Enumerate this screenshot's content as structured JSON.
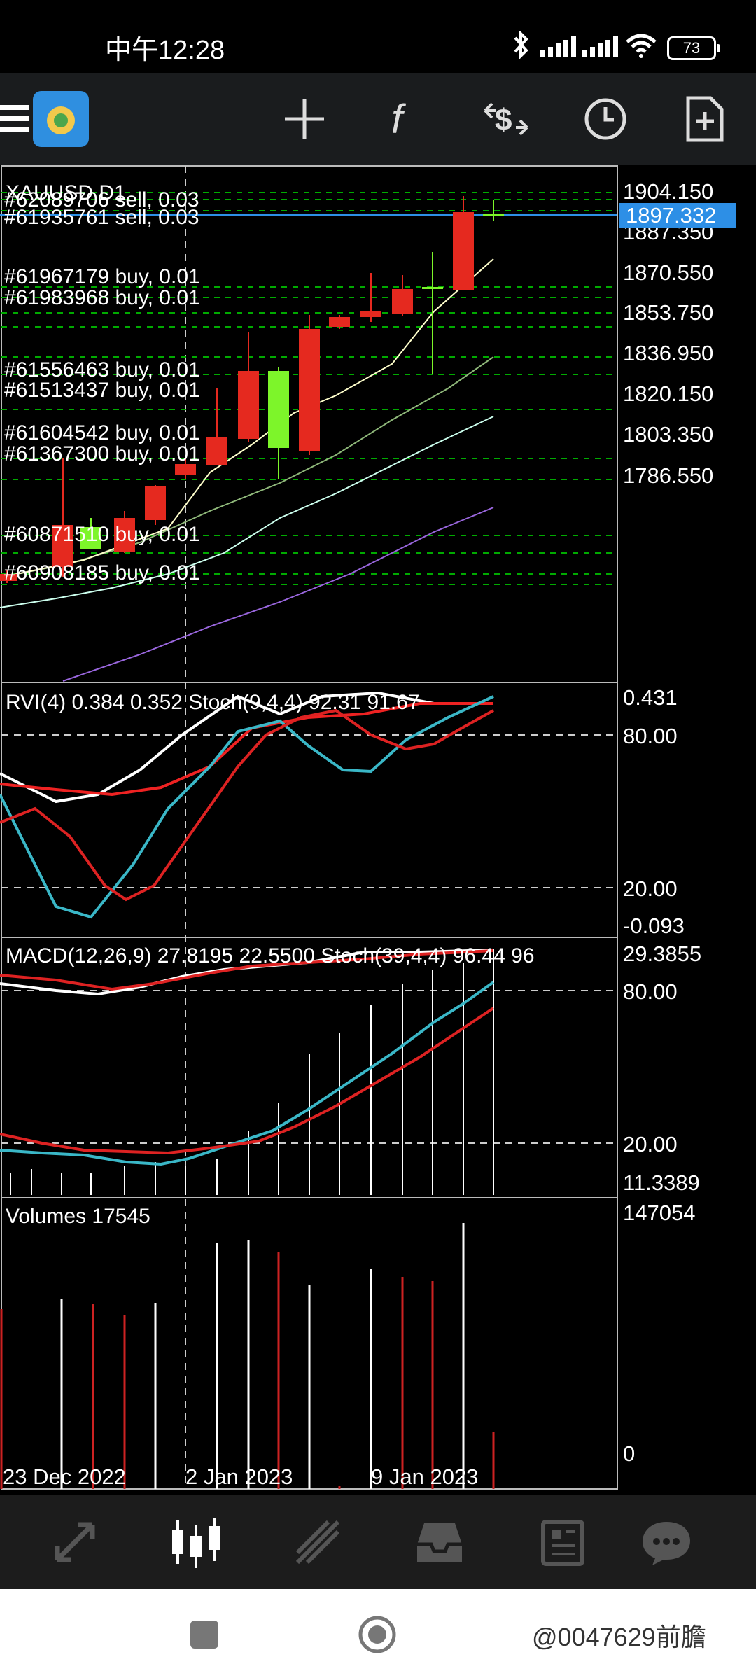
{
  "status_bar": {
    "time": "中午12:28",
    "battery": "73",
    "icons": [
      "bluetooth-icon",
      "signal-icon",
      "signal-icon",
      "wifi-icon",
      "battery-icon"
    ]
  },
  "toolbar": {
    "icons": [
      "menu-icon",
      "metatrader-logo-icon",
      "crosshair-icon",
      "indicator-f-icon",
      "dollar-arrows-icon",
      "clock-icon",
      "add-document-icon"
    ]
  },
  "main_chart": {
    "symbol_label": "XAUUSD,D1",
    "price_ticks": [
      "1904.150",
      "1887.350",
      "1870.550",
      "1853.750",
      "1836.950",
      "1820.150",
      "1803.350",
      "1786.550"
    ],
    "current_price": "1897.332",
    "order_labels": [
      "#62089706 sell, 0.03",
      "#61935761 sell, 0.03",
      "#61967179 buy, 0.01",
      "#61983968 buy, 0.01",
      "#61556463 buy, 0.01",
      "#61513437 buy, 0.01",
      "#61604542 buy, 0.01",
      "#61367300 buy, 0.01",
      "#60871510 buy, 0.01",
      "#60908185 buy, 0.01"
    ],
    "colors": {
      "up": "#e5291f",
      "down": "#7df52a",
      "price_line": "#2d8fe6",
      "grid": "#00aa00"
    }
  },
  "rvi_panel": {
    "label": "RVI(4) 0.384 0.352 Stoch(9,4,4) 92.31 91.67",
    "ticks": [
      "0.431",
      "80.00",
      "20.00",
      "-0.093"
    ]
  },
  "macd_panel": {
    "label": "MACD(12,26,9) 27.8195 22.5500 Stoch(39,4,4) 96.44 96",
    "ticks": [
      "29.3855",
      "80.00",
      "20.00",
      "11.3389"
    ]
  },
  "volume_panel": {
    "label": "Volumes 17545",
    "ticks": [
      "147054",
      "0"
    ]
  },
  "x_axis": [
    "23 Dec 2022",
    "2 Jan 2023",
    "9 Jan 2023"
  ],
  "bottom_nav": {
    "items": [
      "quotes-icon",
      "chart-icon",
      "trade-icon",
      "history-icon",
      "news-icon",
      "chat-icon"
    ]
  },
  "android_nav": [
    "square-button-icon",
    "home-circle-icon"
  ],
  "watermark": "@0047629前膽"
}
